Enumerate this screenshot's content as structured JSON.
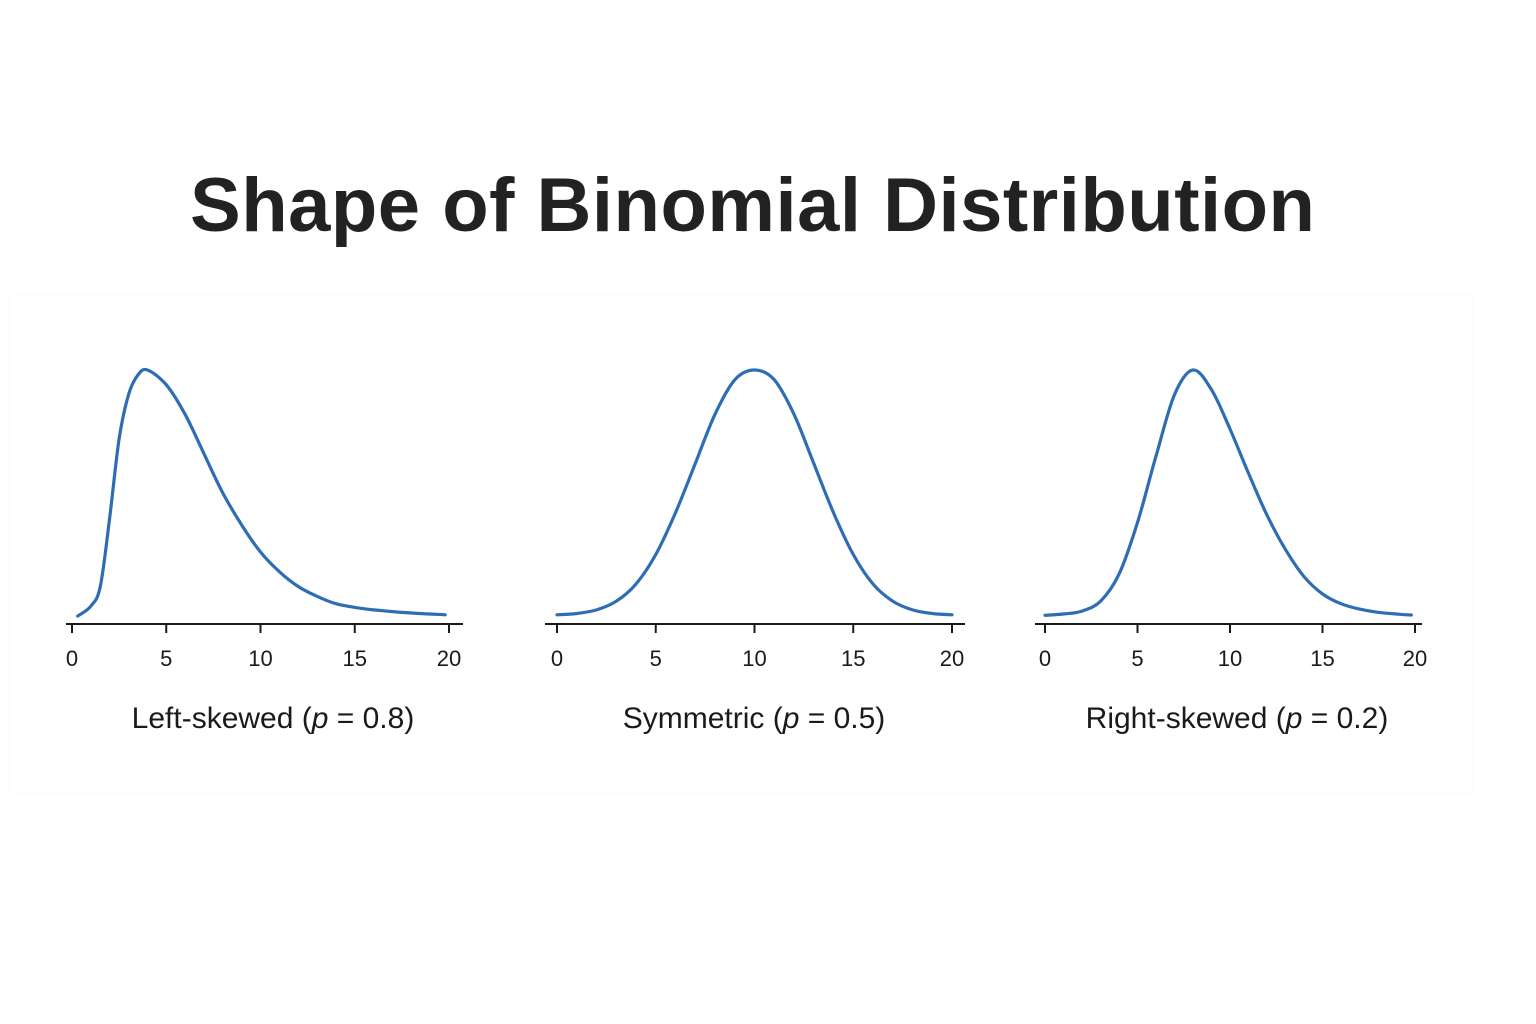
{
  "title": "Shape of Binomial Distribution",
  "colors": {
    "curve": "#2e6db4",
    "axis": "#1a1a1a"
  },
  "chart_data": [
    {
      "type": "line",
      "caption_prefix": "Left-skewed (",
      "caption_var": "p",
      "caption_suffix": " = 0.8)",
      "xlim": [
        0,
        20
      ],
      "xticks": [
        0,
        5,
        10,
        15,
        20
      ],
      "x": [
        0.3,
        1,
        1.5,
        2,
        2.5,
        3,
        3.5,
        4,
        5,
        6,
        7,
        8,
        9,
        10,
        11,
        12,
        13,
        14,
        15,
        16,
        17,
        18,
        19,
        19.8
      ],
      "y": [
        0.0,
        0.04,
        0.12,
        0.4,
        0.72,
        0.9,
        0.98,
        1.0,
        0.94,
        0.82,
        0.66,
        0.5,
        0.37,
        0.26,
        0.18,
        0.12,
        0.08,
        0.05,
        0.035,
        0.025,
        0.018,
        0.012,
        0.008,
        0.005
      ],
      "ylim": [
        0,
        1
      ]
    },
    {
      "type": "line",
      "caption_prefix": "Symmetric (",
      "caption_var": "p",
      "caption_suffix": " = 0.5)",
      "xlim": [
        0,
        20
      ],
      "xticks": [
        0,
        5,
        10,
        15,
        20
      ],
      "x": [
        0,
        1,
        2,
        3,
        4,
        5,
        6,
        7,
        8,
        9,
        10,
        11,
        12,
        13,
        14,
        15,
        16,
        17,
        18,
        19,
        20
      ],
      "y": [
        0.005,
        0.01,
        0.025,
        0.06,
        0.13,
        0.25,
        0.42,
        0.62,
        0.82,
        0.96,
        1.0,
        0.96,
        0.82,
        0.62,
        0.42,
        0.25,
        0.13,
        0.06,
        0.025,
        0.01,
        0.005
      ],
      "ylim": [
        0,
        1
      ]
    },
    {
      "type": "line",
      "caption_prefix": "Right-skewed (",
      "caption_var": "p",
      "caption_suffix": " = 0.2)",
      "xlim": [
        0,
        20
      ],
      "xticks": [
        0,
        5,
        10,
        15,
        20
      ],
      "x": [
        0,
        1,
        2,
        3,
        4,
        5,
        6,
        7,
        8,
        9,
        10,
        11,
        12,
        13,
        14,
        15,
        16,
        17,
        18,
        19,
        19.8
      ],
      "y": [
        0.003,
        0.008,
        0.02,
        0.06,
        0.17,
        0.38,
        0.65,
        0.9,
        1.0,
        0.92,
        0.76,
        0.58,
        0.41,
        0.27,
        0.16,
        0.09,
        0.05,
        0.028,
        0.015,
        0.008,
        0.004
      ],
      "ylim": [
        0,
        1
      ]
    }
  ]
}
